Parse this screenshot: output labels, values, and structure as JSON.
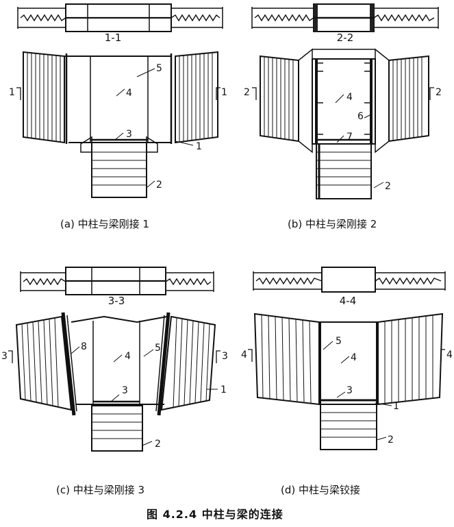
{
  "figure": {
    "title": "图 4.2.4   中柱与梁的连接"
  },
  "panels": [
    {
      "id": "a",
      "caption": "(a) 中柱与梁刚接 1",
      "section_label": "1-1",
      "cut_label_left": "1",
      "cut_label_right": "1",
      "callouts": [
        "5",
        "4",
        "3",
        "1",
        "2"
      ]
    },
    {
      "id": "b",
      "caption": "(b) 中柱与梁刚接 2",
      "section_label": "2-2",
      "cut_label_left": "2",
      "cut_label_right": "2",
      "callouts": [
        "4",
        "6",
        "7",
        "2"
      ]
    },
    {
      "id": "c",
      "caption": "(c) 中柱与梁刚接 3",
      "section_label": "3-3",
      "cut_label_left": "3",
      "cut_label_right": "3",
      "callouts": [
        "8",
        "4",
        "5",
        "3",
        "1",
        "2"
      ]
    },
    {
      "id": "d",
      "caption": "(d) 中柱与梁铰接",
      "section_label": "4-4",
      "cut_label_left": "4",
      "cut_label_right": "4",
      "callouts": [
        "5",
        "4",
        "3",
        "1",
        "2"
      ]
    }
  ]
}
